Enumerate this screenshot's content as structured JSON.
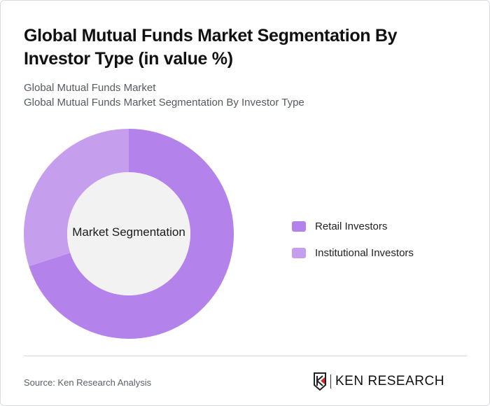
{
  "header": {
    "title": "Global Mutual Funds Market Segmentation By Investor Type (in value %)",
    "subtitle_line1": "Global Mutual Funds Market",
    "subtitle_line2": "Global Mutual Funds Market Segmentation By Investor Type"
  },
  "chart": {
    "center_label": "Market Segmentation"
  },
  "legend": {
    "items": [
      {
        "label": "Retail Investors",
        "color": "#b382ea"
      },
      {
        "label": "Institutional Investors",
        "color": "#c69eee"
      }
    ]
  },
  "footer": {
    "source": "Source: Ken Research Analysis",
    "logo_text": "KEN RESEARCH"
  },
  "chart_data": {
    "type": "pie",
    "subtype": "donut",
    "title": "Global Mutual Funds Market Segmentation By Investor Type (in value %)",
    "center_label": "Market Segmentation",
    "categories": [
      "Retail Investors",
      "Institutional Investors"
    ],
    "values": [
      70,
      30
    ],
    "colors": [
      "#b382ea",
      "#c69eee"
    ],
    "legend_position": "right",
    "unit": "%"
  }
}
